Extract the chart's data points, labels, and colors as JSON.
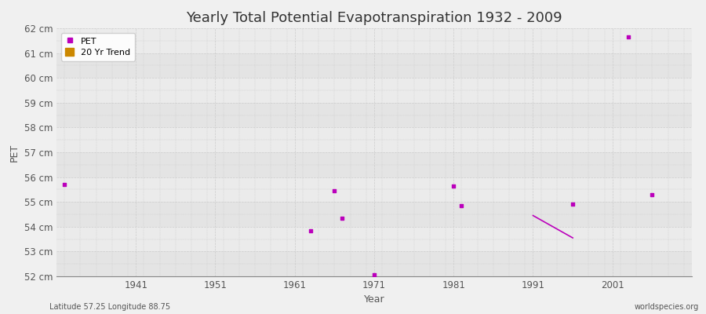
{
  "title": "Yearly Total Potential Evapotranspiration 1932 - 2009",
  "xlabel": "Year",
  "ylabel": "PET",
  "subtitle_left": "Latitude 57.25 Longitude 88.75",
  "subtitle_right": "worldspecies.org",
  "ylim": [
    52,
    62
  ],
  "xlim": [
    1931,
    2011
  ],
  "yticks": [
    52,
    53,
    54,
    55,
    56,
    57,
    58,
    59,
    60,
    61,
    62
  ],
  "ytick_labels": [
    "52 cm",
    "53 cm",
    "54 cm",
    "55 cm",
    "56 cm",
    "57 cm",
    "58 cm",
    "59 cm",
    "60 cm",
    "61 cm",
    "62 cm"
  ],
  "xticks": [
    1941,
    1951,
    1961,
    1971,
    1981,
    1991,
    2001
  ],
  "pet_data": {
    "years": [
      1932,
      1963,
      1966,
      1967,
      1971,
      1981,
      1982,
      1996,
      2003,
      2006
    ],
    "values": [
      55.7,
      53.85,
      55.45,
      54.35,
      52.05,
      55.65,
      54.85,
      54.9,
      61.65,
      55.3
    ]
  },
  "trend_data": {
    "years": [
      1991,
      1996
    ],
    "values": [
      54.45,
      53.55
    ]
  },
  "pet_color": "#bb00bb",
  "trend_color": "#bb00bb",
  "legend_pet_color": "#bb00bb",
  "legend_trend_color": "#cc8800",
  "bg_color": "#f0f0f0",
  "band_colors": [
    "#e8e8e8",
    "#ebebeb"
  ],
  "grid_color": "#cccccc",
  "title_fontsize": 13,
  "label_fontsize": 9,
  "tick_fontsize": 8.5,
  "legend_fontsize": 8,
  "marker_size": 3
}
